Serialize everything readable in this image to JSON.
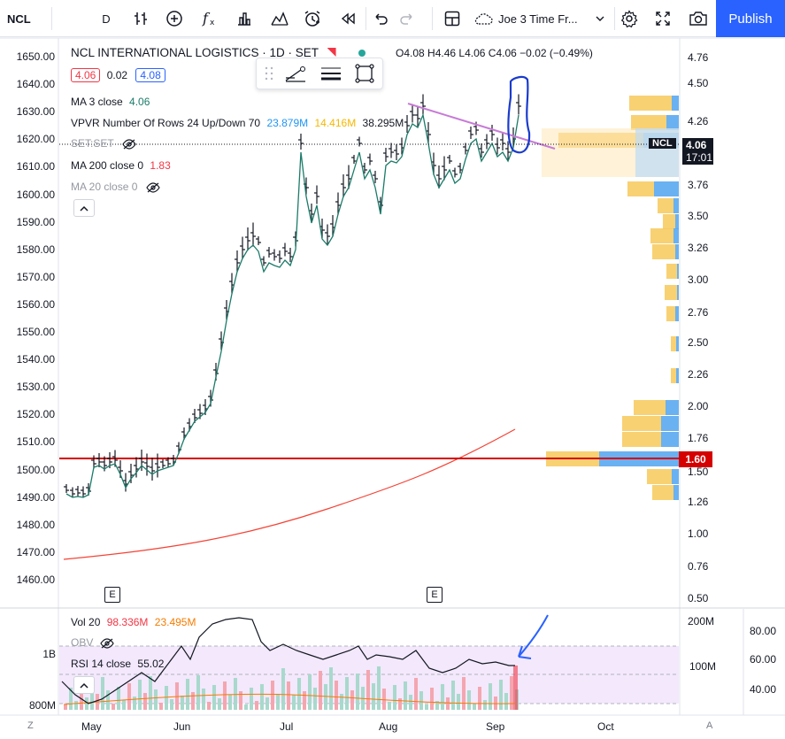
{
  "toolbar": {
    "symbol": "NCL",
    "interval": "D",
    "layout_name": "Joe 3 Time Fr...",
    "publish_label": "Publish"
  },
  "legend": {
    "title": "NCL INTERNATIONAL LOGISTICS · 1D · SET",
    "ohlc": {
      "o": "O4.08",
      "h": "H4.46",
      "l": "L4.06",
      "c": "C4.06",
      "chg": "−0.02 (−0.49%)"
    },
    "bid": "4.06",
    "spread": "0.02",
    "ask": "4.08",
    "ma3_label": "MA 3 close",
    "ma3_value": "4.06",
    "vpvr_label": "VPVR Number Of Rows 24 Up/Down 70",
    "vpvr_v1": "23.879M",
    "vpvr_v2": "14.416M",
    "vpvr_v3": "38.295M",
    "setset_label": "SET:SET",
    "ma200_label": "MA 200 close 0",
    "ma200_value": "1.83",
    "ma20_label": "MA 20 close 0",
    "vol_label": "Vol 20",
    "vol_v1": "98.336M",
    "vol_v2": "23.495M",
    "obv_label": "OBV",
    "rsi_label": "RSI 14 close",
    "rsi_value": "55.02"
  },
  "left_axis": [
    "1650.00",
    "1640.00",
    "1630.00",
    "1620.00",
    "1610.00",
    "1600.00",
    "1590.00",
    "1580.00",
    "1570.00",
    "1560.00",
    "1550.00",
    "1540.00",
    "1530.00",
    "1520.00",
    "1510.00",
    "1500.00",
    "1490.00",
    "1480.00",
    "1470.00",
    "1460.00"
  ],
  "right_axis": [
    "4.76",
    "4.50",
    "4.26",
    "3.76",
    "3.50",
    "3.26",
    "3.00",
    "2.76",
    "2.50",
    "2.26",
    "2.00",
    "1.76",
    "1.50",
    "1.26",
    "1.00",
    "0.76",
    "0.50"
  ],
  "price_tag": {
    "symbol": "NCL",
    "price": "4.06",
    "countdown": "17:01",
    "line_price": "1.60"
  },
  "vol_axis": {
    "top": "200M",
    "mid": "100M",
    "left_top": "1B",
    "left_bottom": "800M"
  },
  "rsi_axis": [
    "80.00",
    "60.00",
    "40.00"
  ],
  "time_axis": [
    "May",
    "Jun",
    "Jul",
    "Aug",
    "Sep",
    "Oct"
  ],
  "bottom_buttons": {
    "left": "Z",
    "right": "A"
  },
  "events": [
    "E",
    "E"
  ],
  "colors": {
    "accent": "#2962ff",
    "red_line": "#d50000",
    "trend": "#c77bd6",
    "ma3": "#1b7b69",
    "ma200": "#f44336"
  }
}
